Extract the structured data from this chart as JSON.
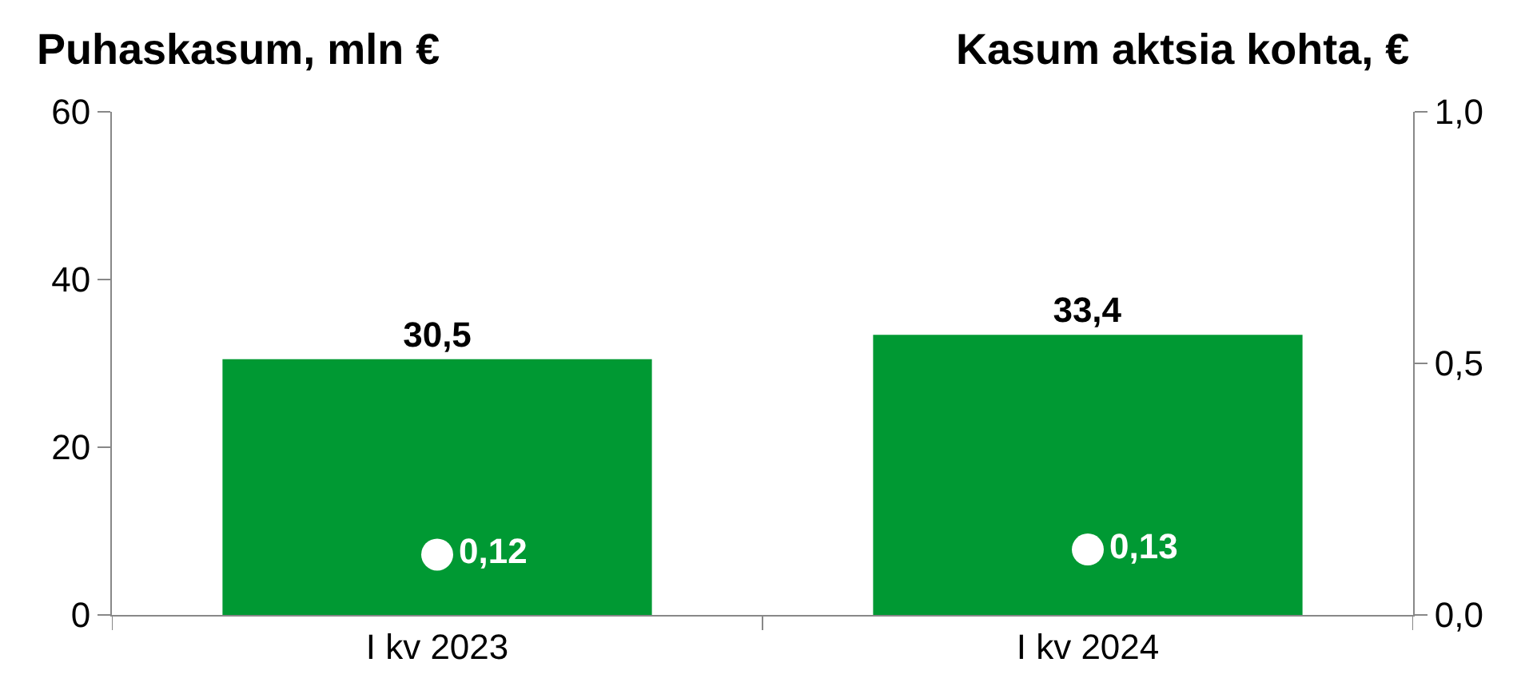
{
  "chart_data": {
    "type": "bar",
    "ylabel": "Puhaskasum, mln €",
    "y2label": "Kasum aktsia kohta, €",
    "categories": [
      "I kv 2023",
      "I kv 2024"
    ],
    "series": [
      {
        "type": "bar",
        "color": "#009933",
        "values": [
          30.5,
          33.4
        ],
        "value_labels": [
          "30,5",
          "33,4"
        ]
      },
      {
        "type": "scatter",
        "axis": "y2",
        "color": "#ffffff",
        "marker": "circle",
        "values": [
          0.12,
          0.13
        ],
        "value_labels": [
          "0,12",
          "0,13"
        ]
      }
    ],
    "ylim": [
      0,
      60
    ],
    "yticks": [
      0,
      20,
      40,
      60
    ],
    "y2lim": [
      0,
      1
    ],
    "y2ticks": [
      {
        "value": 0,
        "label": "0,0"
      },
      {
        "value": 0.5,
        "label": "0,5"
      },
      {
        "value": 1,
        "label": "1,0"
      }
    ],
    "grid": false,
    "legend": false
  }
}
